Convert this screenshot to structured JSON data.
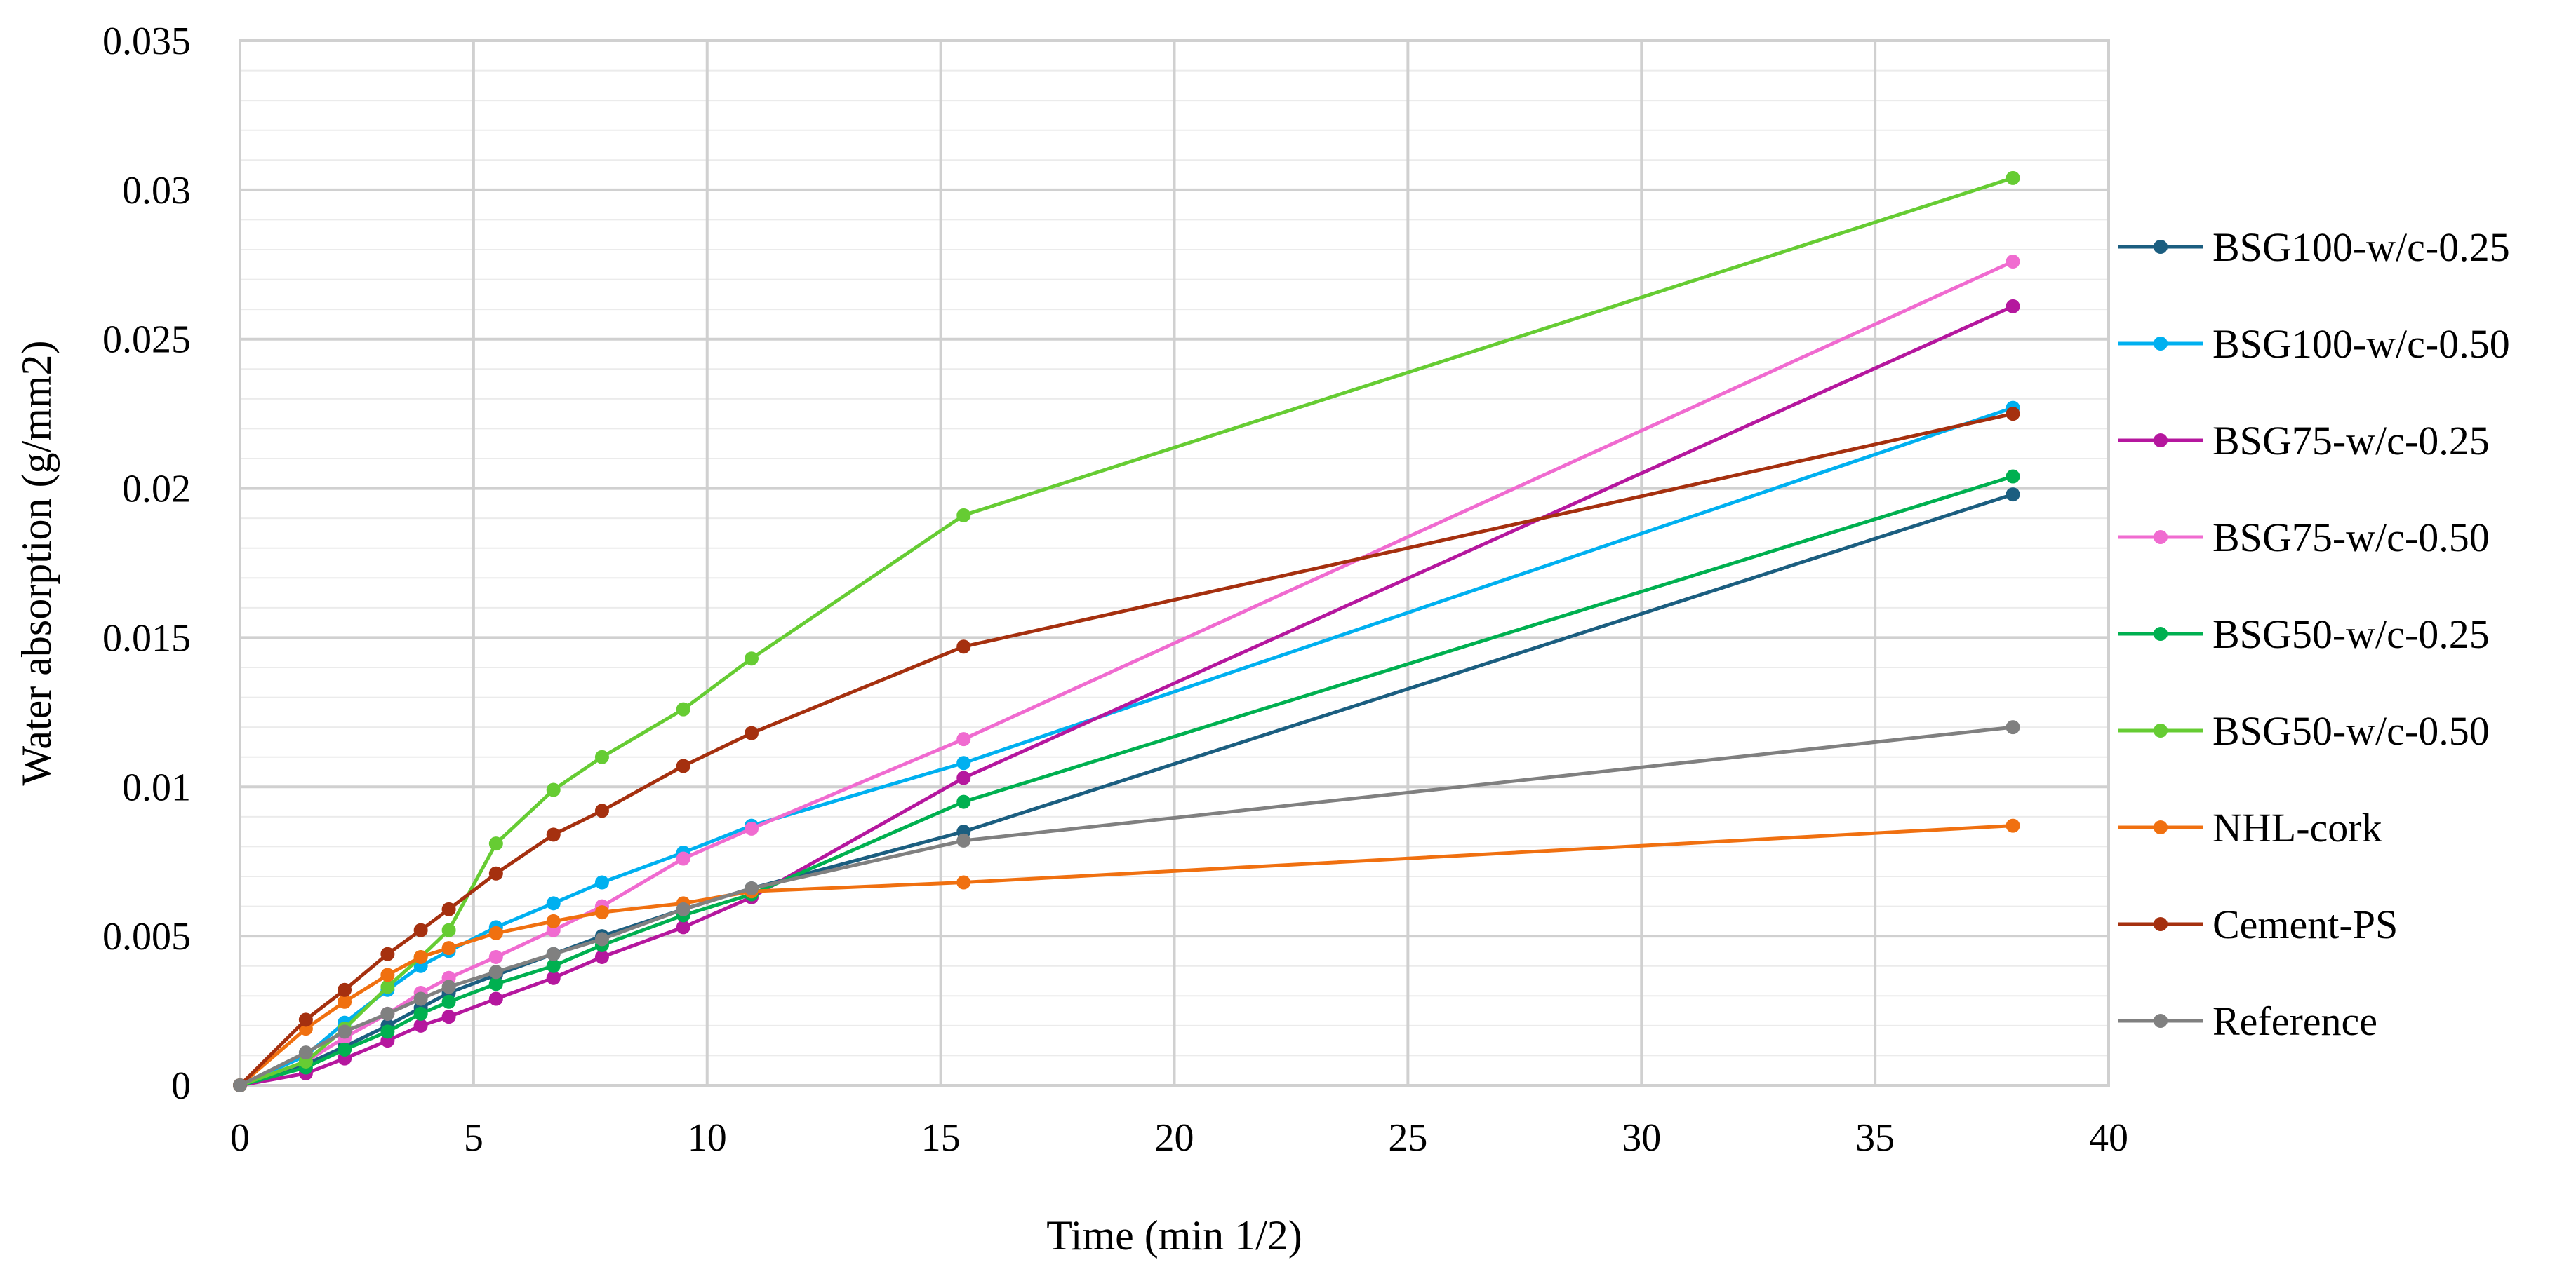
{
  "chart_data": {
    "type": "line",
    "title": "",
    "xlabel": "Time (min 1/2)",
    "ylabel": "Water absorption (g/mm2)",
    "xlim": [
      0,
      40
    ],
    "ylim": [
      0,
      0.035
    ],
    "x_ticks": [
      0,
      5,
      10,
      15,
      20,
      25,
      30,
      35,
      40
    ],
    "y_ticks": [
      0,
      0.005,
      0.01,
      0.015,
      0.02,
      0.025,
      0.03,
      0.035
    ],
    "x_tick_labels": [
      "0",
      "5",
      "10",
      "15",
      "20",
      "25",
      "30",
      "35",
      "40"
    ],
    "y_tick_labels": [
      "0",
      "0.005",
      "0.01",
      "0.015",
      "0.02",
      "0.025",
      "0.03",
      "0.035"
    ],
    "grid": true,
    "legend_position": "right",
    "x": [
      0,
      1.41,
      2.24,
      3.16,
      3.87,
      4.47,
      5.48,
      6.71,
      7.75,
      9.49,
      10.95,
      15.49,
      37.95
    ],
    "series": [
      {
        "name": "BSG100-w/c-0.25",
        "color": "#1b5e80",
        "values": [
          0,
          0.0007,
          0.0013,
          0.002,
          0.0026,
          0.0031,
          0.0037,
          0.0044,
          0.005,
          0.0059,
          0.0066,
          0.0085,
          0.0198
        ]
      },
      {
        "name": "BSG100-w/c-0.50",
        "color": "#00b0f0",
        "values": [
          0,
          0.001,
          0.0021,
          0.0032,
          0.004,
          0.0045,
          0.0053,
          0.0061,
          0.0068,
          0.0078,
          0.0087,
          0.0108,
          0.0227
        ]
      },
      {
        "name": "BSG75-w/c-0.25",
        "color": "#b5179e",
        "values": [
          0,
          0.0004,
          0.0009,
          0.0015,
          0.002,
          0.0023,
          0.0029,
          0.0036,
          0.0043,
          0.0053,
          0.0063,
          0.0103,
          0.0261
        ]
      },
      {
        "name": "BSG75-w/c-0.50",
        "color": "#f06bd0",
        "values": [
          0,
          0.0008,
          0.0016,
          0.0024,
          0.0031,
          0.0036,
          0.0043,
          0.0052,
          0.006,
          0.0076,
          0.0086,
          0.0116,
          0.0276
        ]
      },
      {
        "name": "BSG50-w/c-0.25",
        "color": "#00b050",
        "values": [
          0,
          0.0006,
          0.0012,
          0.0018,
          0.0024,
          0.0028,
          0.0034,
          0.004,
          0.0047,
          0.0057,
          0.0064,
          0.0095,
          0.0204
        ]
      },
      {
        "name": "BSG50-w/c-0.50",
        "color": "#66cc33",
        "values": [
          0,
          0.0008,
          0.0019,
          0.0033,
          0.0043,
          0.0052,
          0.0081,
          0.0099,
          0.011,
          0.0126,
          0.0143,
          0.0191,
          0.0304
        ]
      },
      {
        "name": "NHL-cork",
        "color": "#f07010",
        "values": [
          0,
          0.0019,
          0.0028,
          0.0037,
          0.0043,
          0.0046,
          0.0051,
          0.0055,
          0.0058,
          0.0061,
          0.0065,
          0.0068,
          0.0087
        ]
      },
      {
        "name": "Cement-PS",
        "color": "#a5300f",
        "values": [
          0,
          0.0022,
          0.0032,
          0.0044,
          0.0052,
          0.0059,
          0.0071,
          0.0084,
          0.0092,
          0.0107,
          0.0118,
          0.0147,
          0.0225
        ]
      },
      {
        "name": "Reference",
        "color": "#808080",
        "values": [
          0,
          0.0011,
          0.0018,
          0.0024,
          0.0029,
          0.0033,
          0.0038,
          0.0044,
          0.0049,
          0.0059,
          0.0066,
          0.0082,
          0.012
        ]
      }
    ]
  }
}
